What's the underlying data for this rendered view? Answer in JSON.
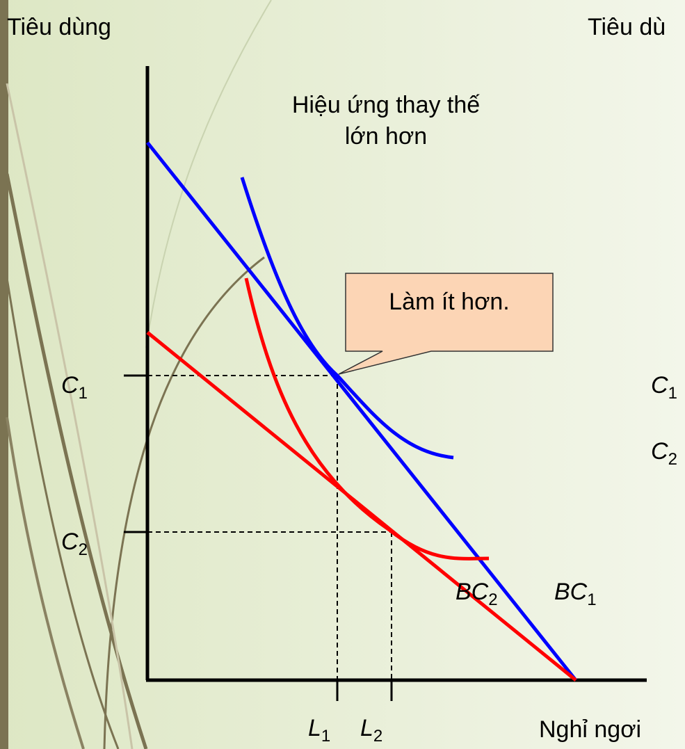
{
  "axes": {
    "y_label": "Tiêu dùng",
    "x_label": "Nghỉ ngơi",
    "right_y_label": "Tiêu dù"
  },
  "heading": {
    "line1": "Hiệu ứng thay thế",
    "line2": "lớn hơn"
  },
  "callout": "Làm ít hơn.",
  "levels": {
    "c1": {
      "main": "C",
      "sub": "1"
    },
    "c2": {
      "main": "C",
      "sub": "2"
    },
    "l1": {
      "main": "L",
      "sub": "1"
    },
    "l2": {
      "main": "L",
      "sub": "2"
    }
  },
  "lines": {
    "bc1": {
      "main": "BC",
      "sub": "1"
    },
    "bc2": {
      "main": "BC",
      "sub": "2"
    }
  },
  "right_levels": {
    "c1": {
      "main": "C",
      "sub": "1"
    },
    "c2": {
      "main": "C",
      "sub": "2"
    }
  }
}
